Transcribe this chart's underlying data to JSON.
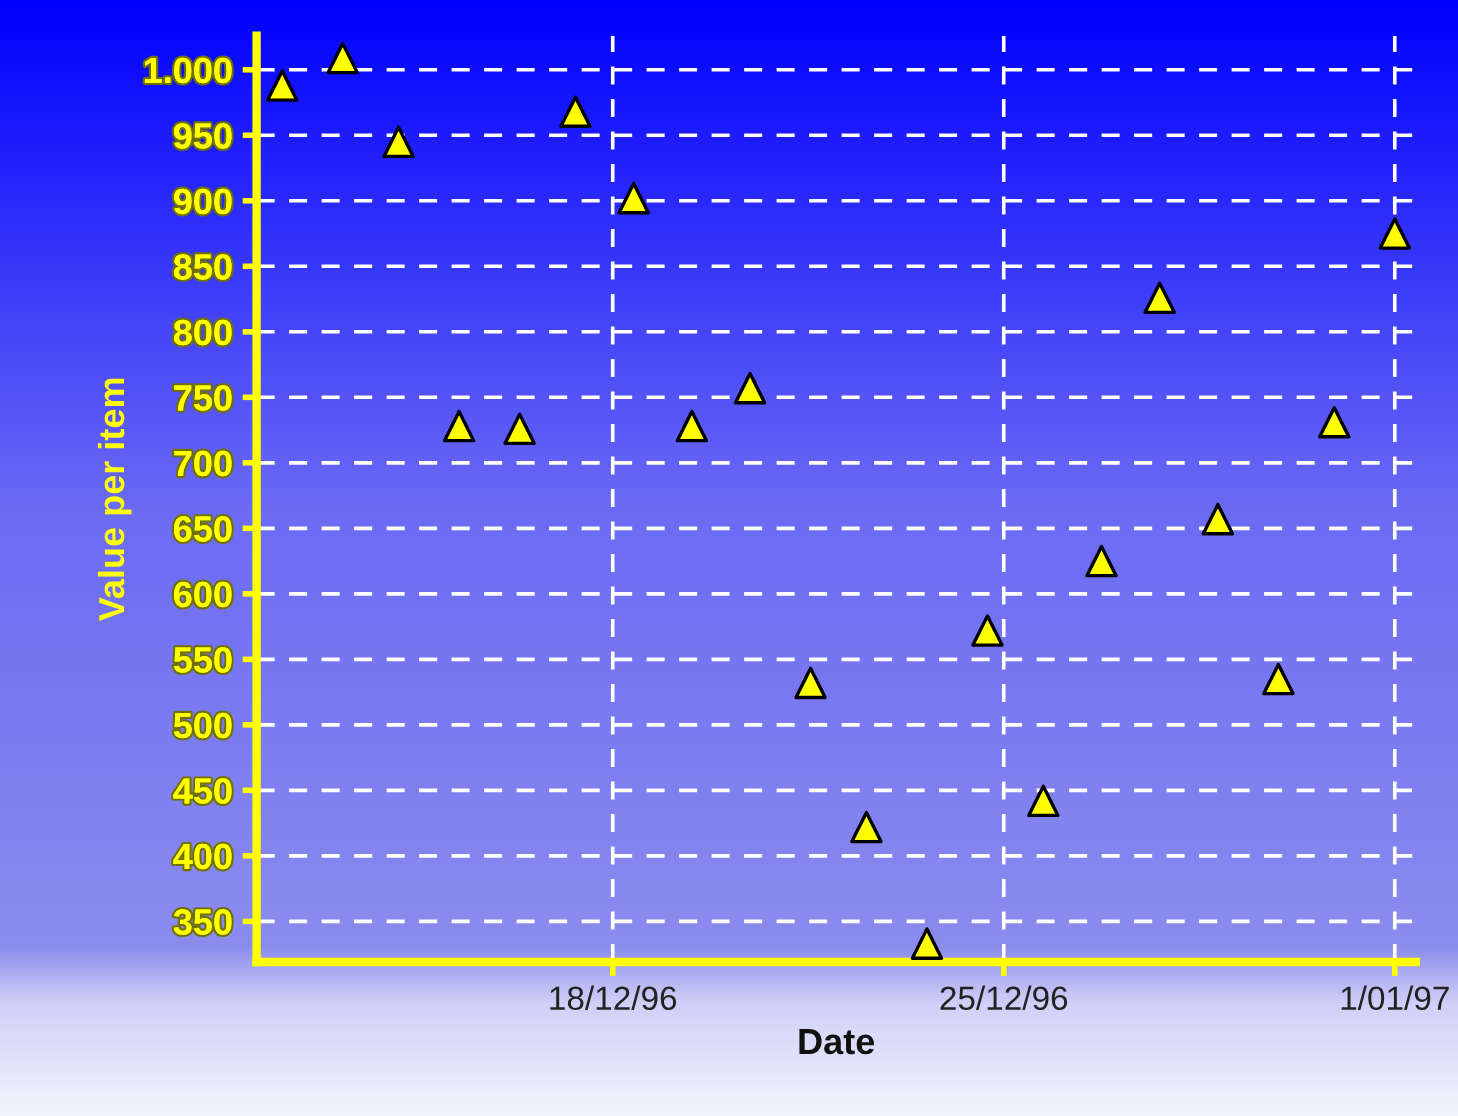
{
  "chart_data": {
    "type": "scatter",
    "xlabel": "Date",
    "ylabel": "Value per item",
    "x": [
      "1996-12-12T02:00",
      "1996-12-13T04:00",
      "1996-12-14T04:00",
      "1996-12-15T06:00",
      "1996-12-16T08:00",
      "1996-12-17T08:00",
      "1996-12-18T09:00",
      "1996-12-19T10:00",
      "1996-12-20T11:00",
      "1996-12-21T13:00",
      "1996-12-22T13:00",
      "1996-12-23T15:00",
      "1996-12-24T17:00",
      "1996-12-25T17:00",
      "1996-12-26T18:00",
      "1996-12-27T19:00",
      "1996-12-28T20:00",
      "1996-12-29T22:00",
      "1996-12-30T22:00",
      "1997-01-01T00:00"
    ],
    "series": [
      {
        "color": "#ffff00",
        "values": [
          988,
          1009,
          945,
          728,
          726,
          968,
          902,
          728,
          757,
          532,
          422,
          333,
          572,
          442,
          625,
          826,
          657,
          535,
          731,
          875
        ]
      }
    ],
    "marker": "triangle",
    "grid": true,
    "xlim": [
      "1996-12-11T15:00",
      "1997-01-01T09:00"
    ],
    "xticks": [
      {
        "value": "1996-12-18",
        "label": "18/12/96"
      },
      {
        "value": "1996-12-25",
        "label": "25/12/96"
      },
      {
        "value": "1997-01-01",
        "label": "1/01/97"
      }
    ],
    "ylim": [
      319,
      1026
    ],
    "yticks": [
      {
        "value": 1000,
        "label": "1.000"
      },
      950,
      900,
      850,
      800,
      750,
      700,
      650,
      600,
      550,
      500,
      450,
      400,
      350
    ]
  }
}
